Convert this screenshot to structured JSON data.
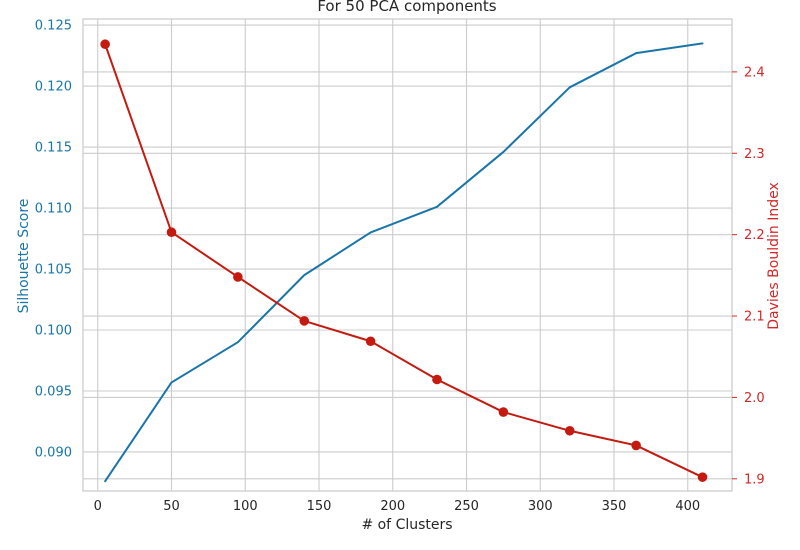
{
  "chart_data": {
    "type": "line",
    "title": "For 50 PCA components",
    "xlabel": "# of Clusters",
    "ylabel_left": "Silhouette Score",
    "ylabel_right": "Davies Bouldin Index",
    "x": [
      5,
      50,
      95,
      140,
      185,
      230,
      275,
      320,
      365,
      410
    ],
    "xlim": [
      -10,
      430
    ],
    "x_ticks": [
      "0",
      "50",
      "100",
      "150",
      "200",
      "250",
      "300",
      "350",
      "400"
    ],
    "ylim_left": [
      0.0868,
      0.1255
    ],
    "y_ticks_left": [
      "0.090",
      "0.095",
      "0.100",
      "0.105",
      "0.110",
      "0.115",
      "0.120",
      "0.125"
    ],
    "ylim_right": [
      1.885,
      2.465
    ],
    "y_ticks_right": [
      "1.9",
      "2.0",
      "2.1",
      "2.2",
      "2.3",
      "2.4"
    ],
    "grid": true,
    "series": [
      {
        "axis": "left",
        "color": "#1a75a8",
        "marker": "none",
        "values": [
          0.0876,
          0.0957,
          0.099,
          0.1045,
          0.108,
          0.1101,
          0.1146,
          0.1199,
          0.1227,
          0.1235
        ]
      },
      {
        "axis": "right",
        "color": "#c41a10",
        "marker": "circle",
        "values": [
          2.434,
          2.203,
          2.148,
          2.094,
          2.069,
          2.022,
          1.982,
          1.959,
          1.941,
          1.902
        ]
      }
    ],
    "colors": {
      "left_axis": "#1a75a8",
      "right_axis": "#d62728",
      "grid": "#cccccc",
      "spine": "#cccccc",
      "text": "#262626"
    }
  }
}
